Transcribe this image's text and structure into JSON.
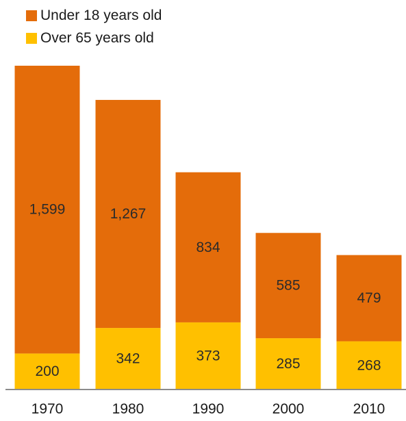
{
  "chart_data": {
    "type": "bar",
    "stacked": true,
    "categories": [
      "1970",
      "1980",
      "1990",
      "2000",
      "2010"
    ],
    "series": [
      {
        "name": "Over 65 years old",
        "values": [
          200,
          342,
          373,
          285,
          268
        ],
        "color": "#ffc000",
        "value_labels": [
          "200",
          "342",
          "373",
          "285",
          "268"
        ]
      },
      {
        "name": "Under 18 years old",
        "values": [
          1599,
          1267,
          834,
          585,
          479
        ],
        "color": "#e46c0a",
        "value_labels": [
          "1,599",
          "1,267",
          "834",
          "585",
          "479"
        ]
      }
    ],
    "legend_order": [
      "Under 18 years old",
      "Over 65 years old"
    ],
    "legend_position": "top-left",
    "ylim": [
      0,
      1800
    ],
    "grid": false,
    "title": "",
    "xlabel": "",
    "ylabel": ""
  }
}
